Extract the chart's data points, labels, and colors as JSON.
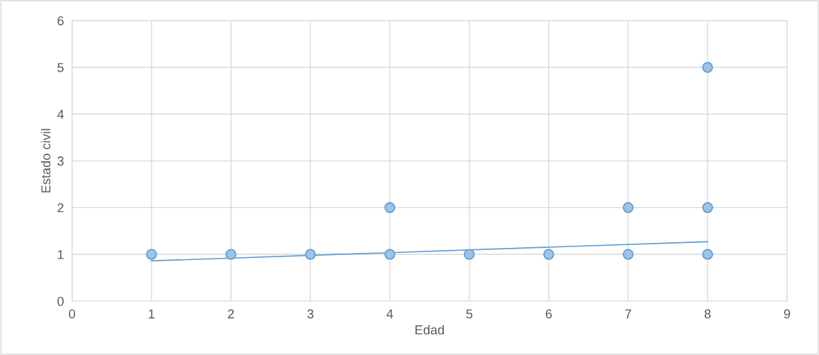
{
  "chart_data": {
    "type": "scatter",
    "xlabel": "Edad",
    "ylabel": "Estado civil",
    "xlim": [
      0,
      9
    ],
    "ylim": [
      0,
      6
    ],
    "xticks": [
      0,
      1,
      2,
      3,
      4,
      5,
      6,
      7,
      8,
      9
    ],
    "yticks": [
      0,
      1,
      2,
      3,
      4,
      5,
      6
    ],
    "grid": true,
    "marker": "circle",
    "legend": false,
    "series": [
      {
        "color": "#9dc3e6",
        "x": [
          1,
          2,
          3,
          4,
          4,
          5,
          6,
          7,
          7,
          8,
          8,
          8
        ],
        "values": [
          1,
          1,
          1,
          1,
          2,
          1,
          1,
          1,
          2,
          1,
          2,
          5
        ]
      },
      {
        "type": "line",
        "color": "#5b9bd5",
        "x": [
          1,
          8
        ],
        "values": [
          0.86,
          1.27
        ],
        "marker": "none"
      }
    ]
  }
}
